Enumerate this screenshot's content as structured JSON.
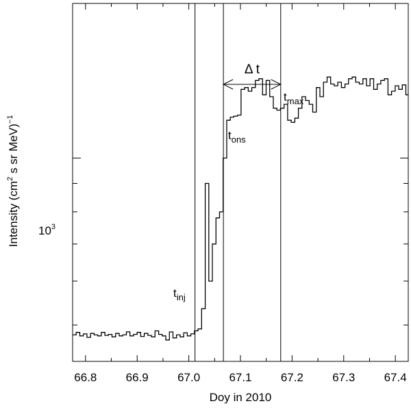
{
  "chart_data": {
    "type": "line",
    "xlabel": "Doy in 2010",
    "ylabel_main": "Intensity  (cm",
    "ylabel_sup1": "2",
    "ylabel_mid": " s sr MeV)",
    "ylabel_sup2": "−1",
    "xlim": [
      66.775,
      67.425
    ],
    "ylim": [
      430,
      1900
    ],
    "yscale": "log",
    "x_ticks": [
      "66.8",
      "66.9",
      "67.0",
      "67.1",
      "67.2",
      "67.3",
      "67.4"
    ],
    "x_tick_values": [
      66.8,
      66.9,
      67.0,
      67.1,
      67.2,
      67.3,
      67.4
    ],
    "y_tick_label_base": "10",
    "y_tick_label_exp": "3",
    "y_tick_label_value": 1000,
    "grid": false,
    "annotations": {
      "t_inj": {
        "base": "t",
        "sub": "inj",
        "x": 67.012
      },
      "t_ons": {
        "base": "t",
        "sub": "ons",
        "x": 67.067
      },
      "t_max": {
        "base": "t",
        "sub": "max",
        "x": 67.178
      },
      "delta_t": "Δ t"
    },
    "series": [
      {
        "step": 0.00694,
        "x_start": 66.775,
        "values": [
          480,
          485,
          478,
          482,
          475,
          483,
          480,
          478,
          485,
          479,
          481,
          476,
          483,
          478,
          480,
          486,
          478,
          481,
          485,
          477,
          483,
          479,
          476,
          488,
          481,
          478,
          470,
          486,
          474,
          480,
          476,
          484,
          478,
          482,
          488,
          492,
          535,
          900,
          600,
          700,
          780,
          800,
          1000,
          1170,
          1185,
          1190,
          1195,
          1330,
          1340,
          1320,
          1340,
          1380,
          1390,
          1300,
          1380,
          1290,
          1230,
          1220,
          1230,
          1250,
          1170,
          1160,
          1180,
          1230,
          1290,
          1270,
          1250,
          1210,
          1340,
          1290,
          1370,
          1400,
          1360,
          1350,
          1370,
          1340,
          1360,
          1390,
          1400,
          1370,
          1360,
          1390,
          1350,
          1390,
          1330,
          1360,
          1380,
          1390,
          1300,
          1320,
          1350,
          1330,
          1355,
          1300
        ]
      }
    ]
  }
}
